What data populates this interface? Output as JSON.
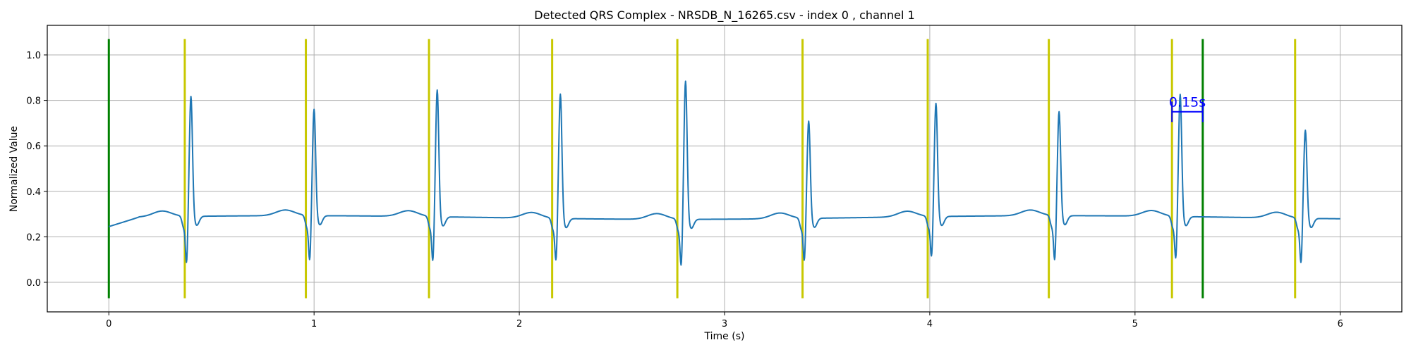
{
  "chart_data": {
    "type": "line",
    "title": "Detected QRS Complex - NRSDB_N_16265.csv - index 0 , channel 1",
    "xlabel": "Time (s)",
    "ylabel": "Normalized Value",
    "xlim": [
      -0.3,
      6.3
    ],
    "ylim": [
      -0.13,
      1.13
    ],
    "xticks": [
      0,
      1,
      2,
      3,
      4,
      5,
      6
    ],
    "yticks": [
      0.0,
      0.2,
      0.4,
      0.6,
      0.8,
      1.0
    ],
    "xtick_labels": [
      "0",
      "1",
      "2",
      "3",
      "4",
      "5",
      "6"
    ],
    "ytick_labels": [
      "0.0",
      "0.2",
      "0.4",
      "0.6",
      "0.8",
      "1.0"
    ],
    "grid": true,
    "signal": {
      "color": "#1f77b4",
      "x_end": 6.0,
      "baseline_start": 0.245,
      "r_peaks": [
        {
          "t": 0.4,
          "r": 0.83,
          "s": 0.09
        },
        {
          "t": 1.0,
          "r": 0.77,
          "s": 0.1
        },
        {
          "t": 1.6,
          "r": 0.86,
          "s": 0.1
        },
        {
          "t": 2.2,
          "r": 0.85,
          "s": 0.11
        },
        {
          "t": 2.81,
          "r": 0.91,
          "s": 0.09
        },
        {
          "t": 3.41,
          "r": 0.73,
          "s": 0.11
        },
        {
          "t": 4.03,
          "r": 0.8,
          "s": 0.12
        },
        {
          "t": 4.63,
          "r": 0.76,
          "s": 0.1
        },
        {
          "t": 5.22,
          "r": 0.84,
          "s": 0.11
        },
        {
          "t": 5.83,
          "r": 0.69,
          "s": 0.1
        }
      ]
    },
    "markers": {
      "y_range": [
        -0.07,
        1.07
      ],
      "yellow": {
        "color": "#c8c800",
        "x": [
          0.37,
          0.96,
          1.56,
          2.16,
          2.77,
          3.38,
          3.99,
          4.58,
          5.18,
          5.78
        ]
      },
      "green": {
        "color": "#008000",
        "x": [
          0.0,
          5.33
        ]
      }
    },
    "annotation": {
      "text": "0.15s",
      "color": "#0000ff",
      "x_start": 5.18,
      "x_end": 5.33,
      "y": 0.75,
      "cap_half": 0.045
    }
  }
}
